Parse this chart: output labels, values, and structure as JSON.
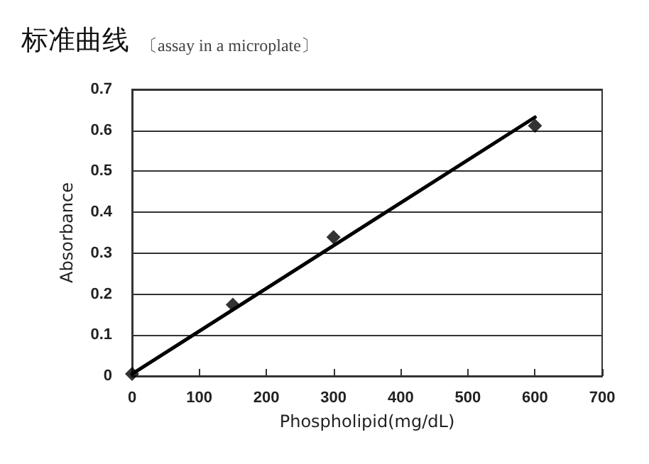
{
  "chart_data": {
    "type": "scatter",
    "title": "标准曲线",
    "subtitle": "〔assay in a microplate〕",
    "xlabel": "Phospholipid(mg/dL)",
    "ylabel": "Absorbance",
    "xlim": [
      0,
      700
    ],
    "xticks": [
      0,
      100,
      200,
      300,
      400,
      500,
      600,
      700
    ],
    "ylim": [
      0,
      0.7
    ],
    "yticks": [
      0,
      0.1,
      0.2,
      0.3,
      0.4,
      0.5,
      0.6,
      0.7
    ],
    "grid": "y",
    "series": [
      {
        "x": [
          0,
          150,
          300,
          600
        ],
        "values": [
          0.005,
          0.174,
          0.339,
          0.611
        ],
        "color": "#000000",
        "marker": "diamond"
      },
      {
        "type": "line",
        "x": [
          0,
          600
        ],
        "values": [
          0.005,
          0.632
        ],
        "color": "#000000",
        "marker": "none",
        "line_style": "solid"
      }
    ]
  }
}
